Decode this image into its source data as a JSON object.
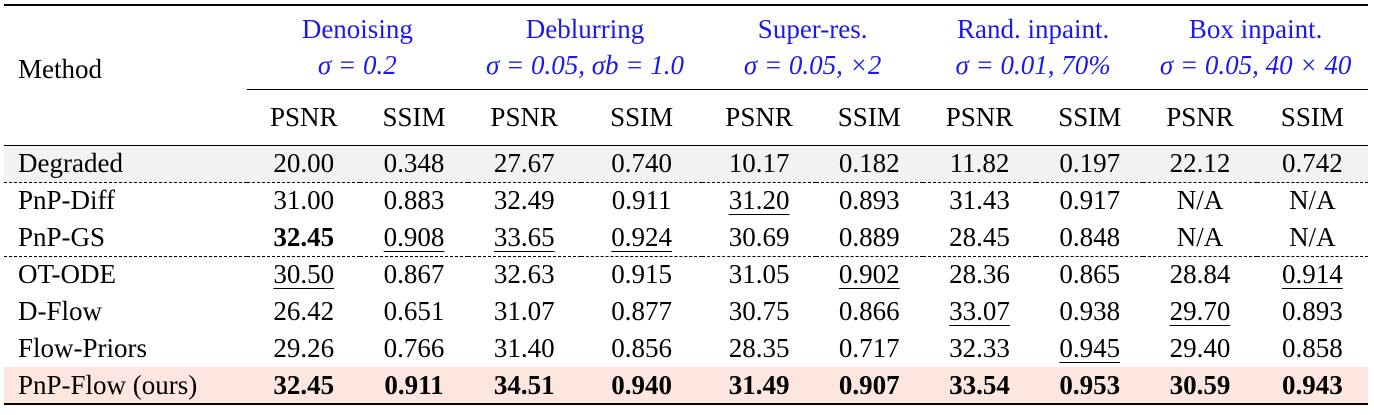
{
  "header": {
    "method_label": "Method",
    "tasks": [
      {
        "name": "Denoising",
        "setting": "σ = 0.2"
      },
      {
        "name": "Deblurring",
        "setting": "σ = 0.05, σb = 1.0"
      },
      {
        "name": "Super-res.",
        "setting": "σ = 0.05, ×2"
      },
      {
        "name": "Rand. inpaint.",
        "setting": "σ = 0.01, 70%"
      },
      {
        "name": "Box inpaint.",
        "setting": "σ = 0.05, 40 × 40"
      }
    ],
    "metrics": [
      "PSNR",
      "SSIM"
    ]
  },
  "rows": [
    {
      "method": "Degraded",
      "values": [
        "20.00",
        "0.348",
        "27.67",
        "0.740",
        "10.17",
        "0.182",
        "11.82",
        "0.197",
        "22.12",
        "0.742"
      ]
    },
    {
      "method": "PnP-Diff",
      "values": [
        "31.00",
        "0.883",
        "32.49",
        "0.911",
        "31.20",
        "0.893",
        "31.43",
        "0.917",
        "N/A",
        "N/A"
      ]
    },
    {
      "method": "PnP-GS",
      "values": [
        "32.45",
        "0.908",
        "33.65",
        "0.924",
        "30.69",
        "0.889",
        "28.45",
        "0.848",
        "N/A",
        "N/A"
      ]
    },
    {
      "method": "OT-ODE",
      "values": [
        "30.50",
        "0.867",
        "32.63",
        "0.915",
        "31.05",
        "0.902",
        "28.36",
        "0.865",
        "28.84",
        "0.914"
      ]
    },
    {
      "method": "D-Flow",
      "values": [
        "26.42",
        "0.651",
        "31.07",
        "0.877",
        "30.75",
        "0.866",
        "33.07",
        "0.938",
        "29.70",
        "0.893"
      ]
    },
    {
      "method": "Flow-Priors",
      "values": [
        "29.26",
        "0.766",
        "31.40",
        "0.856",
        "28.35",
        "0.717",
        "32.33",
        "0.945",
        "29.40",
        "0.858"
      ]
    },
    {
      "method": "PnP-Flow (ours)",
      "values": [
        "32.45",
        "0.911",
        "34.51",
        "0.940",
        "31.49",
        "0.907",
        "33.54",
        "0.953",
        "30.59",
        "0.943"
      ]
    }
  ],
  "colors": {
    "task_header": "#1a1aee",
    "degraded_row_bg": "#f2f2f2",
    "ours_row_bg": "#fde6e0"
  }
}
